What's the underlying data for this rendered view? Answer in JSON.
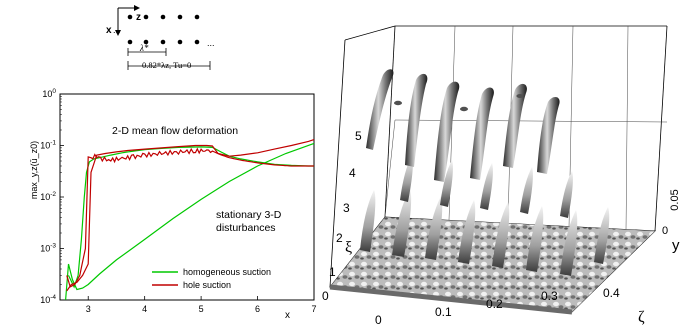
{
  "schematic": {
    "axis_z": "z",
    "axis_x": "x",
    "dots_left": "...",
    "dots_right": "...",
    "lambda_label": "λ*",
    "lambda_z_label": "0.82*λz, Tu=0"
  },
  "chart_data": [
    {
      "type": "line",
      "title": "",
      "xlabel": "x",
      "ylabel": "max_y,z(ū_z0)",
      "xlim": [
        2.5,
        7
      ],
      "ylim": [
        0.0001,
        1
      ],
      "yscale": "log",
      "grid": false,
      "x_ticks": [
        "3",
        "4",
        "5",
        "6",
        "7"
      ],
      "y_ticks": [
        "10-4",
        "10-3",
        "10-2",
        "10-1",
        "100"
      ],
      "annotations": [
        "2-D mean flow deformation",
        "stationary 3-D",
        "disturbances"
      ],
      "legend": {
        "placement": "bottom-right"
      },
      "series": [
        {
          "name": "homogeneous suction",
          "color": "#00c800",
          "role": "mean",
          "x": [
            2.65,
            2.75,
            2.82,
            2.88,
            2.93,
            2.97,
            3.02,
            3.1,
            3.2,
            3.4,
            3.6,
            3.8,
            4.0,
            4.3,
            4.6,
            5.0,
            5.2,
            5.35,
            5.5,
            5.7,
            6.0,
            6.3,
            6.6,
            6.9,
            7.0
          ],
          "y": [
            0.0003,
            0.00018,
            0.0003,
            0.0015,
            0.01,
            0.03,
            0.048,
            0.055,
            0.058,
            0.065,
            0.072,
            0.078,
            0.083,
            0.088,
            0.092,
            0.094,
            0.092,
            0.075,
            0.062,
            0.055,
            0.048,
            0.043,
            0.041,
            0.04,
            0.04
          ]
        },
        {
          "name": "homogeneous suction",
          "color": "#00c800",
          "role": "disturbance",
          "x": [
            2.6,
            2.65,
            2.72,
            2.8,
            2.9,
            3.0,
            3.2,
            3.5,
            4.0,
            4.5,
            5.0,
            5.5,
            6.0,
            6.5,
            7.0
          ],
          "y": [
            0.0001,
            0.0005,
            0.00025,
            0.00016,
            0.00017,
            0.0002,
            0.00032,
            0.0006,
            0.0015,
            0.0038,
            0.009,
            0.02,
            0.04,
            0.07,
            0.11
          ]
        },
        {
          "name": "hole suction",
          "color": "#c00000",
          "role": "mean",
          "x": [
            2.62,
            2.68,
            2.76,
            2.85,
            2.95,
            3.0,
            3.05,
            3.15,
            3.25,
            3.4,
            3.6,
            3.8,
            4.0,
            4.3,
            4.6,
            4.9,
            5.1,
            5.2,
            5.35,
            5.5,
            5.7,
            6.0,
            6.3,
            6.6,
            6.9,
            7.0
          ],
          "y": [
            0.0003,
            0.00018,
            0.0002,
            0.0003,
            0.001,
            0.06,
            0.058,
            0.062,
            0.055,
            0.052,
            0.056,
            0.06,
            0.065,
            0.07,
            0.075,
            0.078,
            0.08,
            0.078,
            0.066,
            0.058,
            0.052,
            0.046,
            0.042,
            0.04,
            0.04,
            0.04
          ]
        },
        {
          "name": "hole suction",
          "color": "#c00000",
          "role": "disturbance",
          "x": [
            2.62,
            2.7,
            2.8,
            2.9,
            3.0,
            3.05,
            3.15,
            3.3,
            3.5,
            3.7,
            4.0,
            4.3,
            4.6,
            4.9,
            5.1,
            5.2,
            5.3,
            5.5,
            5.7,
            6.0,
            6.3,
            6.6,
            6.9,
            7.0
          ],
          "y": [
            0.00015,
            0.0002,
            0.00022,
            0.0003,
            0.0005,
            0.03,
            0.065,
            0.07,
            0.075,
            0.08,
            0.085,
            0.09,
            0.095,
            0.1,
            0.1,
            0.098,
            0.07,
            0.062,
            0.065,
            0.072,
            0.085,
            0.1,
            0.12,
            0.13
          ]
        }
      ]
    },
    {
      "type": "heatmap",
      "title": "",
      "xlabel": "ζ",
      "ylabel": "ξ",
      "zlabel": "y",
      "x_ticks": [
        "0",
        "0.1",
        "0.2",
        "0.3",
        "0.4"
      ],
      "y_ticks": [
        "0",
        "1",
        "2",
        "3",
        "4",
        "5"
      ],
      "z_ticks": [
        "0",
        "0.05"
      ],
      "grid": true
    }
  ]
}
